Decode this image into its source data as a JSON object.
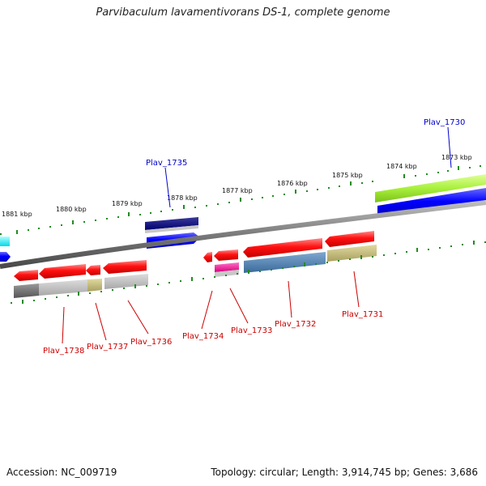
{
  "title": "Parvibaculum lavamentivorans DS-1, complete genome",
  "accession": "Accession: NC_009719",
  "topology": "Topology: circular; Length: 3,914,745 bp; Genes: 3,686",
  "kbp_labels": [
    "1881 kbp",
    "1880 kbp",
    "1879 kbp",
    "1878 kbp",
    "1877 kbp",
    "1876 kbp",
    "1875 kbp",
    "1874 kbp",
    "1873 kbp"
  ],
  "gene_labels_top": [
    "Plav_1735",
    "Plav_1730"
  ],
  "gene_labels_bottom": [
    "Plav_1738",
    "Plav_1737",
    "Plav_1736",
    "Plav_1734",
    "Plav_1733",
    "Plav_1732",
    "Plav_1731"
  ],
  "colors": {
    "forward_gene": "#0000ee",
    "reverse_gene": "#ee0000",
    "top_label": "#0000cc",
    "bottom_label": "#cc0000",
    "tick": "#228b22",
    "backbone": "#808080"
  }
}
